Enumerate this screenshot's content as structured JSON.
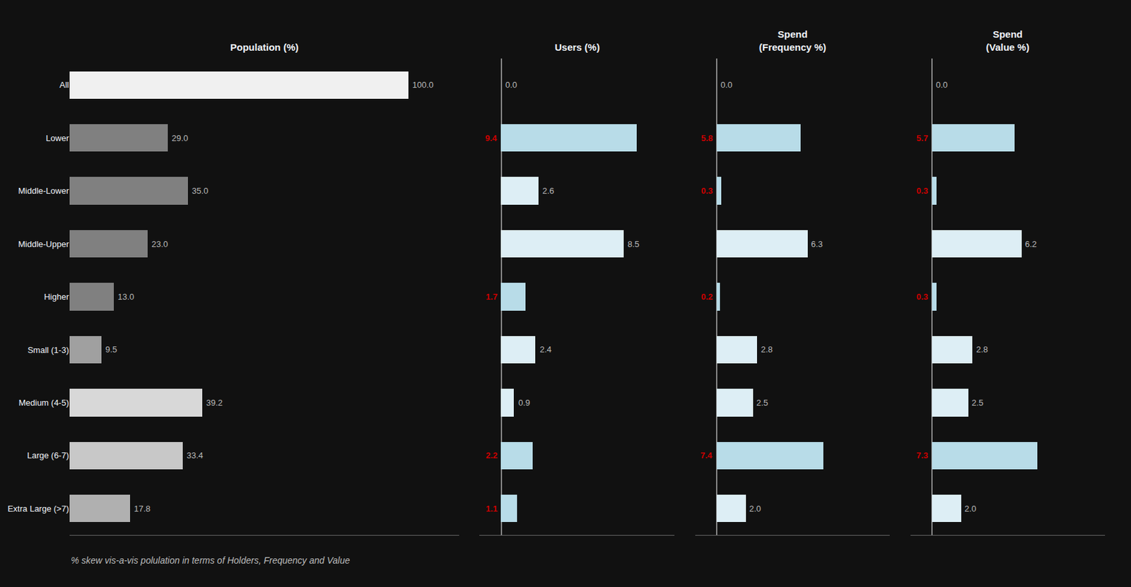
{
  "chart_data": [
    {
      "type": "bar",
      "orientation": "horizontal",
      "title": "Population (%)",
      "categories": [
        "All",
        "Lower",
        "Middle-Lower",
        "Middle-Upper",
        "Higher",
        "Small (1-3)",
        "Medium (4-5)",
        "Large (6-7)",
        "Extra Large (>7)"
      ],
      "values": [
        100.0,
        29.0,
        35.0,
        23.0,
        13.0,
        9.5,
        39.2,
        33.4,
        17.8
      ],
      "value_labels": [
        "100.0",
        "29.0",
        "35.0",
        "23.0",
        "13.0",
        "9.5",
        "39.2",
        "33.4",
        "17.8"
      ],
      "colors": [
        "#f0f0f0",
        "#808080",
        "#808080",
        "#808080",
        "#808080",
        "#a0a0a0",
        "#d8d8d8",
        "#c8c8c8",
        "#b0b0b0"
      ],
      "xlim": [
        0,
        115
      ],
      "data_labels": true,
      "tick_labels": "y",
      "grid": false,
      "annotations": [
        "% skew vis-a-vis polulation in terms of Holders, Frequency and Value"
      ]
    },
    {
      "type": "bar",
      "orientation": "horizontal",
      "title": "Users (%)",
      "categories": [
        "All",
        "Lower",
        "Middle-Lower",
        "Middle-Upper",
        "Higher",
        "Small (1-3)",
        "Medium (4-5)",
        "Large (6-7)",
        "Extra Large (>7)"
      ],
      "values": [
        0.0,
        9.4,
        2.6,
        8.5,
        1.7,
        2.4,
        0.9,
        2.2,
        1.1
      ],
      "value_labels": [
        "0.0",
        "9.4",
        "2.6",
        "8.5",
        "1.7",
        "2.4",
        "0.9",
        "2.2",
        "1.1"
      ],
      "colors": [
        "#ddeef5",
        "#b8dce8",
        "#ddeef5",
        "#ddeef5",
        "#b8dce8",
        "#ddeef5",
        "#ddeef5",
        "#b8dce8",
        "#b8dce8"
      ],
      "xlim": [
        -1.5,
        12.0
      ],
      "data_labels": true,
      "tick_labels": false,
      "grid": false
    },
    {
      "type": "bar",
      "orientation": "horizontal",
      "title": "Spend\n(Frequency %)",
      "categories": [
        "All",
        "Lower",
        "Middle-Lower",
        "Middle-Upper",
        "Higher",
        "Small (1-3)",
        "Medium (4-5)",
        "Large (6-7)",
        "Extra Large (>7)"
      ],
      "values": [
        0.0,
        5.8,
        0.3,
        6.3,
        0.2,
        2.8,
        2.5,
        7.4,
        2.0
      ],
      "value_labels": [
        "0.0",
        "5.8",
        "0.3",
        "6.3",
        "0.2",
        "2.8",
        "2.5",
        "7.4",
        "2.0"
      ],
      "colors": [
        "#ddeef5",
        "#b8dce8",
        "#b8dce8",
        "#ddeef5",
        "#b8dce8",
        "#ddeef5",
        "#ddeef5",
        "#b8dce8",
        "#ddeef5"
      ],
      "xlim": [
        -1.5,
        12.0
      ],
      "data_labels": true,
      "tick_labels": false,
      "grid": false
    },
    {
      "type": "bar",
      "orientation": "horizontal",
      "title": "Spend\n(Value %)",
      "categories": [
        "All",
        "Lower",
        "Middle-Lower",
        "Middle-Upper",
        "Higher",
        "Small (1-3)",
        "Medium (4-5)",
        "Large (6-7)",
        "Extra Large (>7)"
      ],
      "values": [
        0.0,
        5.7,
        0.3,
        6.2,
        0.3,
        2.8,
        2.5,
        7.3,
        2.0
      ],
      "value_labels": [
        "0.0",
        "5.7",
        "0.3",
        "6.2",
        "0.3",
        "2.8",
        "2.5",
        "7.3",
        "2.0"
      ],
      "colors": [
        "#ddeef5",
        "#b8dce8",
        "#b8dce8",
        "#ddeef5",
        "#b8dce8",
        "#ddeef5",
        "#ddeef5",
        "#b8dce8",
        "#ddeef5"
      ],
      "xlim": [
        -1.5,
        12.0
      ],
      "data_labels": true,
      "tick_labels": false,
      "grid": false
    }
  ]
}
